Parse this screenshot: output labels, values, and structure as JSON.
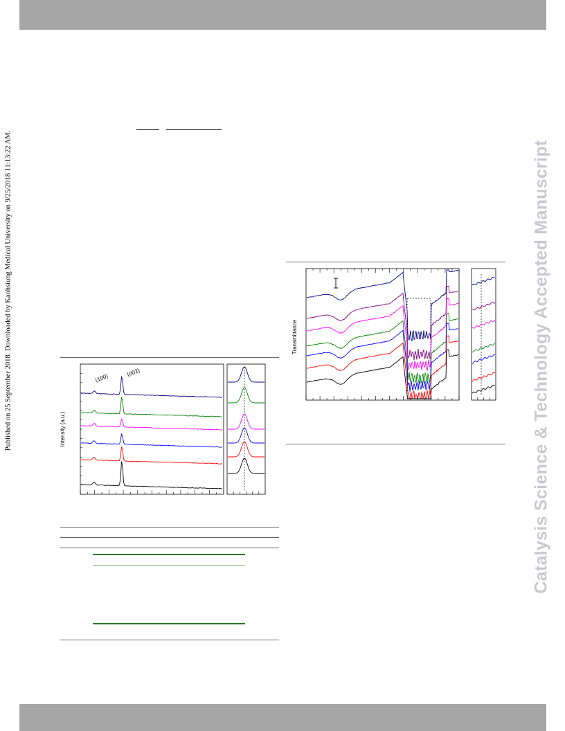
{
  "side_note": "Published on 25 September 2018. Downloaded by Kaohsiung Medical University on 9/25/2018 11:13:22 AM.",
  "watermark": "Catalysis Science & Technology Accepted Manuscript",
  "xrd_figure": {
    "ylabel": "Intensity (a.u.)",
    "peak_labels": [
      "(100)",
      "(002)"
    ],
    "series_colors": [
      "#000080",
      "#008000",
      "#ff00ff",
      "#0000ff",
      "#ff0000",
      "#000000"
    ]
  },
  "ftir_figure": {
    "ylabel": "Transmittance",
    "series_colors": [
      "#000080",
      "#800080",
      "#ff00ff",
      "#008000",
      "#0000ff",
      "#ff0000",
      "#000000"
    ]
  },
  "colors": {
    "band": "#a6a6a6",
    "watermark": "#c8c8d0",
    "table_rule_green": "#2a7a2a"
  }
}
